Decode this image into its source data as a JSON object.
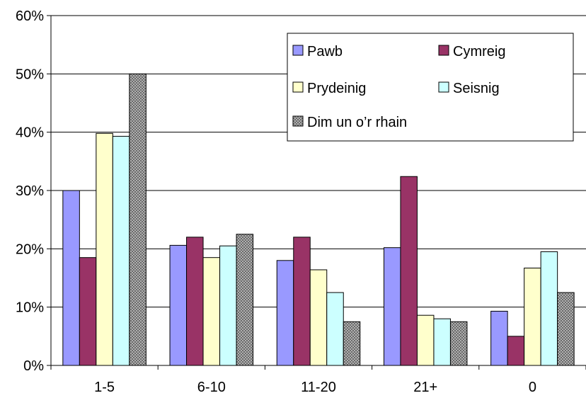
{
  "chart_data": {
    "type": "bar",
    "categories": [
      "1-5",
      "6-10",
      "11-20",
      "21+",
      "0"
    ],
    "series": [
      {
        "name": "Pawb",
        "values": [
          30,
          20.6,
          18,
          20.2,
          9.3
        ],
        "color": "#9999ff",
        "pattern": "solid"
      },
      {
        "name": "Cymreig",
        "values": [
          18.5,
          22,
          22,
          32.4,
          5
        ],
        "color": "#993366",
        "pattern": "solid"
      },
      {
        "name": "Prydeinig",
        "values": [
          39.8,
          18.5,
          16.4,
          8.6,
          16.7
        ],
        "color": "#ffffcc",
        "pattern": "solid"
      },
      {
        "name": "Seisnig",
        "values": [
          39.3,
          20.5,
          12.5,
          8,
          19.5
        ],
        "color": "#ccffff",
        "pattern": "solid"
      },
      {
        "name": "Dim un o’r rhain",
        "values": [
          50,
          22.5,
          7.5,
          7.5,
          12.5
        ],
        "color": "#808080",
        "pattern": "dots"
      }
    ],
    "ylim": [
      0,
      60
    ],
    "yticks": [
      0,
      10,
      20,
      30,
      40,
      50,
      60
    ],
    "ytick_labels": [
      "0%",
      "10%",
      "20%",
      "30%",
      "40%",
      "50%",
      "60%"
    ],
    "title": "",
    "xlabel": "",
    "ylabel": "",
    "grid": true,
    "legend_placement": "top-right"
  }
}
